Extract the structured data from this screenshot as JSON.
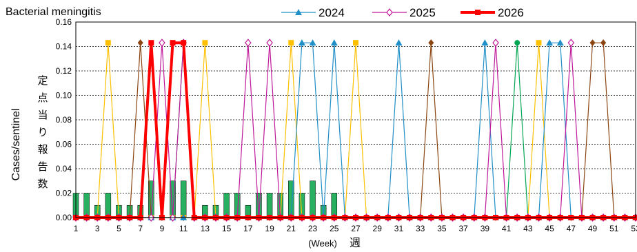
{
  "chart_data": {
    "type": "line",
    "title": "Bacterial meningitis",
    "ylabel_en": "Cases/sentinel",
    "ylabel_jp": "定点当り報告数",
    "xlabel_en": "(Week)",
    "xlabel_jp": "週",
    "ylim": [
      0,
      0.16
    ],
    "yticks": [
      "0.00",
      "0.02",
      "0.04",
      "0.06",
      "0.08",
      "0.10",
      "0.12",
      "0.14",
      "0.16"
    ],
    "xlim": [
      1,
      53
    ],
    "xticks": [
      "1",
      "3",
      "5",
      "7",
      "9",
      "11",
      "13",
      "15",
      "17",
      "19",
      "21",
      "23",
      "25",
      "27",
      "29",
      "31",
      "33",
      "35",
      "37",
      "39",
      "41",
      "43",
      "45",
      "47",
      "49",
      "51",
      "53"
    ],
    "grid": "horizontal dotted",
    "legend": [
      {
        "name": "2024",
        "color": "#1f8fc7"
      },
      {
        "name": "2025",
        "color": "#c0189a"
      },
      {
        "name": "2026",
        "color": "#ff0000"
      }
    ],
    "bars": {
      "color": "#27b05f",
      "values": [
        0.02,
        0.02,
        0.01,
        0.02,
        0.01,
        0.01,
        0.01,
        0.03,
        0,
        0.03,
        0.03,
        0,
        0.01,
        0.01,
        0.02,
        0.02,
        0.01,
        0.02,
        0.02,
        0.02,
        0.03,
        0.02,
        0.03,
        0.01,
        0.02,
        0,
        0,
        0,
        0,
        0,
        0,
        0,
        0,
        0,
        0,
        0,
        0,
        0,
        0,
        0,
        0,
        0,
        0,
        0,
        0,
        0,
        0,
        0,
        0,
        0,
        0,
        0,
        0
      ]
    },
    "other_series": [
      {
        "color": "#ffc000",
        "marker": "square",
        "values": [
          0,
          0,
          0,
          0.143,
          0,
          0,
          0,
          0,
          0,
          0,
          0,
          0,
          0.143,
          0,
          0,
          0,
          0,
          0,
          0,
          0,
          0.143,
          0,
          0,
          0,
          0,
          0,
          0.143,
          0,
          0,
          0,
          0,
          0,
          0,
          0,
          0,
          0,
          0,
          0,
          0,
          0,
          0,
          0,
          0,
          0.143,
          0,
          0,
          0,
          0,
          0,
          0,
          0,
          0,
          0
        ]
      },
      {
        "color": "#8b4513",
        "marker": "diamond",
        "values": [
          0,
          0,
          0,
          0,
          0,
          0,
          0.143,
          0,
          0,
          0,
          0,
          0,
          0,
          0,
          0,
          0,
          0,
          0,
          0,
          0,
          0,
          0,
          0,
          0,
          0,
          0,
          0,
          0,
          0,
          0,
          0,
          0,
          0,
          0.143,
          0,
          0,
          0,
          0,
          0,
          0,
          0,
          0,
          0,
          0,
          0,
          0,
          0,
          0,
          0.143,
          0.143,
          0,
          0,
          0
        ]
      },
      {
        "color": "#00a651",
        "marker": "circle",
        "values": [
          0,
          0,
          0,
          0,
          0,
          0,
          0,
          0,
          0,
          0,
          0.143,
          0,
          0,
          0,
          0,
          0,
          0,
          0,
          0,
          0,
          0,
          0,
          0,
          0,
          0,
          0,
          0,
          0,
          0,
          0,
          0,
          0,
          0,
          0,
          0,
          0,
          0,
          0,
          0,
          0,
          0,
          0.143,
          0,
          0,
          0,
          0,
          0,
          0,
          0,
          0,
          0,
          0,
          0
        ]
      }
    ],
    "series": [
      {
        "name": "2024",
        "color": "#1f8fc7",
        "marker": "triangle",
        "values": [
          0,
          0,
          0,
          0,
          0,
          0,
          0,
          0,
          0,
          0,
          0,
          0,
          0,
          0,
          0,
          0,
          0,
          0,
          0,
          0,
          0,
          0.143,
          0.143,
          0,
          0.143,
          0,
          0,
          0,
          0,
          0,
          0.143,
          0,
          0,
          0,
          0,
          0,
          0,
          0,
          0.143,
          0,
          0,
          0,
          0,
          0,
          0.143,
          0.143,
          0,
          0,
          0,
          0,
          0,
          0,
          0
        ]
      },
      {
        "name": "2025",
        "color": "#c0189a",
        "marker": "diamond-open",
        "values": [
          0,
          0,
          0,
          0,
          0,
          0,
          0,
          0,
          0.143,
          0,
          0.143,
          0,
          0,
          0,
          0,
          0,
          0.143,
          0,
          0.143,
          0,
          0,
          0,
          0,
          0,
          0,
          0,
          0,
          0,
          0,
          0,
          0,
          0,
          0,
          0,
          0,
          0,
          0,
          0,
          0,
          0.143,
          0,
          0,
          0,
          0,
          0,
          0,
          0.143,
          0,
          0,
          0,
          0,
          0,
          0
        ]
      },
      {
        "name": "2026",
        "color": "#ff0000",
        "marker": "square",
        "values": [
          0,
          0,
          0,
          0,
          0,
          0,
          0,
          0.143,
          0,
          0.143,
          0.143,
          0,
          0,
          0,
          0,
          0,
          0,
          0,
          0,
          0,
          0,
          0,
          0,
          0,
          0,
          0,
          0,
          0,
          0,
          0,
          0,
          0,
          0,
          0,
          0,
          0,
          0,
          0,
          0,
          0,
          0,
          0,
          0,
          0,
          0,
          0,
          0,
          0,
          0,
          0,
          0,
          0,
          0
        ]
      }
    ]
  }
}
